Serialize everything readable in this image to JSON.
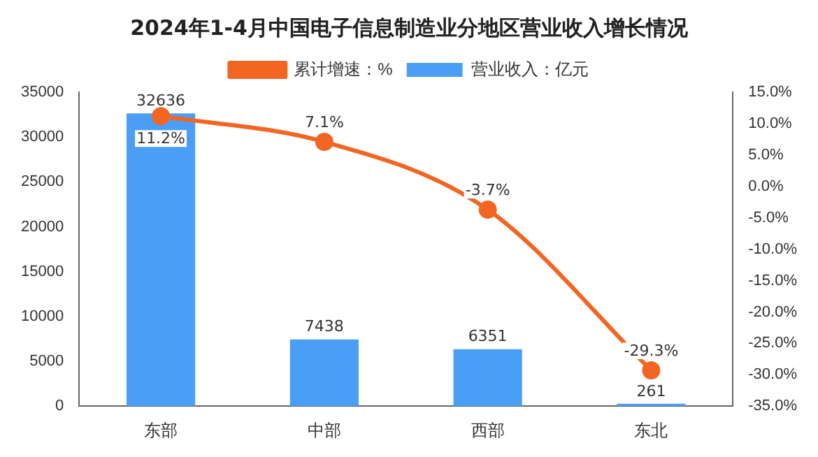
{
  "chart_data": {
    "type": "bar",
    "title": "2024年1-4月中国电子信息制造业分地区营业收入增长情况",
    "categories": [
      "东部",
      "中部",
      "西部",
      "东北"
    ],
    "series": [
      {
        "name": "营业收入：亿元",
        "color": "#4a9ff5",
        "values": [
          32636,
          7438,
          6351,
          261
        ],
        "value_labels": [
          "32636",
          "7438",
          "6351",
          "261"
        ]
      },
      {
        "name": "累计增速：%",
        "type": "line",
        "axis": "y2",
        "color": "#f26522",
        "values": [
          11.2,
          7.1,
          -3.7,
          -29.3
        ],
        "value_labels": [
          "11.2%",
          "7.1%",
          "-3.7%",
          "-29.3%"
        ]
      }
    ],
    "ylim": [
      0,
      35000
    ],
    "yticks": [
      0,
      5000,
      10000,
      15000,
      20000,
      25000,
      30000,
      35000
    ],
    "y2lim": [
      -35,
      15
    ],
    "y2ticks": [
      {
        "value": -35,
        "label": "-35.0%"
      },
      {
        "value": -30,
        "label": "-30.0%"
      },
      {
        "value": -25,
        "label": "-25.0%"
      },
      {
        "value": -20,
        "label": "-20.0%"
      },
      {
        "value": -15,
        "label": "-15.0%"
      },
      {
        "value": -10,
        "label": "-10.0%"
      },
      {
        "value": -5,
        "label": "-5.0%"
      },
      {
        "value": 0,
        "label": "0.0%"
      },
      {
        "value": 5,
        "label": "5.0%"
      },
      {
        "value": 10,
        "label": "10.0%"
      },
      {
        "value": 15,
        "label": "15.0%"
      }
    ],
    "grid": false,
    "legend": "top",
    "marker": "circle",
    "line_style": "solid"
  }
}
